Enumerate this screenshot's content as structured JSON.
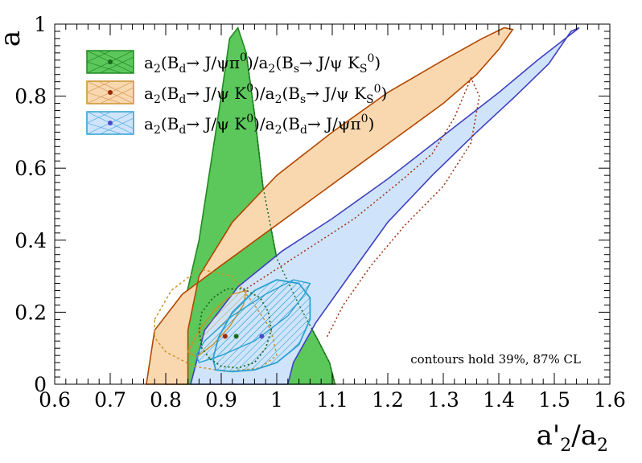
{
  "chart_data": {
    "type": "contour",
    "xlabel": "a'2/a2",
    "ylabel": "a",
    "xlim": [
      0.6,
      1.6
    ],
    "ylim": [
      0,
      1
    ],
    "x_ticks": [
      "0.6",
      "0.7",
      "0.8",
      "0.9",
      "1",
      "1.1",
      "1.2",
      "1.3",
      "1.4",
      "1.5",
      "1.6"
    ],
    "y_ticks": [
      "0",
      "0.2",
      "0.4",
      "0.6",
      "0.8",
      "1"
    ],
    "annotation": "contours hold 39%, 87% CL",
    "legend": [
      "a2(Bd→ J/ψπ0)/a2(Bs→ J/ψ KS0)",
      "a2(Bd→ J/ψ K0)/a2(Bs→ J/ψ KS0)",
      "a2(Bd→ J/ψ K0)/a2(Bd→ J/ψπ0)"
    ],
    "series": [
      {
        "color": "#1f8a1f",
        "fill": "#5cc85c",
        "best_fit": [
          0.927,
          0.133
        ],
        "contour_87": [
          [
            0.8,
            0.0
          ],
          [
            0.81,
            0.08
          ],
          [
            0.83,
            0.2
          ],
          [
            0.86,
            0.4
          ],
          [
            0.88,
            0.6
          ],
          [
            0.9,
            0.8
          ],
          [
            0.915,
            0.96
          ],
          [
            0.93,
            0.99
          ],
          [
            0.945,
            0.92
          ],
          [
            0.96,
            0.75
          ],
          [
            0.975,
            0.55
          ],
          [
            1.0,
            0.35
          ],
          [
            1.04,
            0.22
          ],
          [
            1.075,
            0.12
          ],
          [
            1.095,
            0.06
          ],
          [
            1.105,
            0.0
          ]
        ],
        "contour_39": [
          [
            0.88,
            0.07
          ],
          [
            0.9,
            0.05
          ],
          [
            0.93,
            0.045
          ],
          [
            0.96,
            0.06
          ],
          [
            0.98,
            0.1
          ],
          [
            0.99,
            0.15
          ],
          [
            0.985,
            0.2
          ],
          [
            0.97,
            0.24
          ],
          [
            0.94,
            0.265
          ],
          [
            0.91,
            0.265
          ],
          [
            0.885,
            0.24
          ],
          [
            0.865,
            0.2
          ],
          [
            0.86,
            0.15
          ],
          [
            0.865,
            0.1
          ],
          [
            0.88,
            0.07
          ]
        ]
      },
      {
        "color": "#b34700",
        "fill": "#f9d8b0",
        "best_fit": [
          0.907,
          0.133
        ],
        "contour_87": [
          [
            0.765,
            0.0
          ],
          [
            0.78,
            0.15
          ],
          [
            0.83,
            0.25
          ],
          [
            0.9,
            0.33
          ],
          [
            0.98,
            0.42
          ],
          [
            1.06,
            0.51
          ],
          [
            1.14,
            0.6
          ],
          [
            1.22,
            0.69
          ],
          [
            1.3,
            0.78
          ],
          [
            1.36,
            0.86
          ],
          [
            1.4,
            0.93
          ],
          [
            1.425,
            0.985
          ],
          [
            1.41,
            0.99
          ],
          [
            1.37,
            0.96
          ],
          [
            1.3,
            0.9
          ],
          [
            1.2,
            0.81
          ],
          [
            1.1,
            0.7
          ],
          [
            1.0,
            0.58
          ],
          [
            0.92,
            0.45
          ],
          [
            0.86,
            0.3
          ],
          [
            0.84,
            0.15
          ],
          [
            0.84,
            0.0
          ]
        ],
        "contour_39": [
          [
            0.84,
            0.09
          ],
          [
            0.86,
            0.15
          ],
          [
            0.89,
            0.21
          ],
          [
            0.92,
            0.25
          ],
          [
            0.945,
            0.26
          ],
          [
            0.94,
            0.22
          ],
          [
            0.915,
            0.16
          ],
          [
            0.885,
            0.11
          ],
          [
            0.855,
            0.075
          ],
          [
            0.84,
            0.09
          ]
        ],
        "contour_39_dotted": [
          [
            0.78,
            0.18
          ],
          [
            0.81,
            0.26
          ],
          [
            0.86,
            0.32
          ],
          [
            0.92,
            0.3
          ],
          [
            0.96,
            0.22
          ],
          [
            0.99,
            0.15
          ],
          [
            1.0,
            0.08
          ],
          [
            0.97,
            0.045
          ],
          [
            0.91,
            0.035
          ],
          [
            0.85,
            0.05
          ],
          [
            0.8,
            0.09
          ],
          [
            0.78,
            0.13
          ],
          [
            0.78,
            0.18
          ]
        ]
      },
      {
        "color": "#4040c0",
        "fill": "#cfe4fb",
        "best_fit": [
          0.973,
          0.133
        ],
        "contour_87": [
          [
            0.845,
            0.0
          ],
          [
            0.87,
            0.15
          ],
          [
            0.93,
            0.27
          ],
          [
            1.01,
            0.37
          ],
          [
            1.1,
            0.46
          ],
          [
            1.2,
            0.57
          ],
          [
            1.3,
            0.69
          ],
          [
            1.4,
            0.81
          ],
          [
            1.47,
            0.9
          ],
          [
            1.52,
            0.96
          ],
          [
            1.545,
            0.99
          ],
          [
            1.53,
            0.98
          ],
          [
            1.49,
            0.89
          ],
          [
            1.43,
            0.8
          ],
          [
            1.36,
            0.7
          ],
          [
            1.28,
            0.58
          ],
          [
            1.2,
            0.45
          ],
          [
            1.13,
            0.3
          ],
          [
            1.07,
            0.17
          ],
          [
            1.03,
            0.06
          ],
          [
            1.02,
            0.0
          ]
        ],
        "contour_39": [
          [
            0.86,
            0.06
          ],
          [
            0.9,
            0.08
          ],
          [
            0.96,
            0.12
          ],
          [
            1.02,
            0.19
          ],
          [
            1.05,
            0.25
          ],
          [
            1.06,
            0.28
          ],
          [
            1.03,
            0.29
          ],
          [
            0.98,
            0.25
          ],
          [
            0.92,
            0.19
          ],
          [
            0.87,
            0.12
          ],
          [
            0.855,
            0.08
          ],
          [
            0.86,
            0.06
          ]
        ],
        "contour_39_line": [
          [
            0.89,
            0.04
          ],
          [
            0.92,
            0.035
          ],
          [
            0.96,
            0.04
          ],
          [
            1.0,
            0.06
          ],
          [
            1.04,
            0.11
          ],
          [
            1.06,
            0.18
          ],
          [
            1.06,
            0.24
          ],
          [
            1.04,
            0.28
          ],
          [
            1.0,
            0.29
          ],
          [
            0.96,
            0.26
          ],
          [
            0.92,
            0.2
          ],
          [
            0.895,
            0.13
          ],
          [
            0.885,
            0.07
          ],
          [
            0.89,
            0.04
          ]
        ],
        "contour_87_dotted": [
          [
            0.94,
            0.26
          ],
          [
            1.0,
            0.32
          ],
          [
            1.07,
            0.39
          ],
          [
            1.14,
            0.46
          ],
          [
            1.22,
            0.56
          ],
          [
            1.28,
            0.64
          ],
          [
            1.32,
            0.74
          ],
          [
            1.35,
            0.85
          ],
          [
            1.365,
            0.8
          ],
          [
            1.35,
            0.67
          ],
          [
            1.3,
            0.55
          ],
          [
            1.23,
            0.44
          ],
          [
            1.17,
            0.33
          ],
          [
            1.12,
            0.22
          ],
          [
            1.09,
            0.13
          ]
        ]
      }
    ]
  }
}
